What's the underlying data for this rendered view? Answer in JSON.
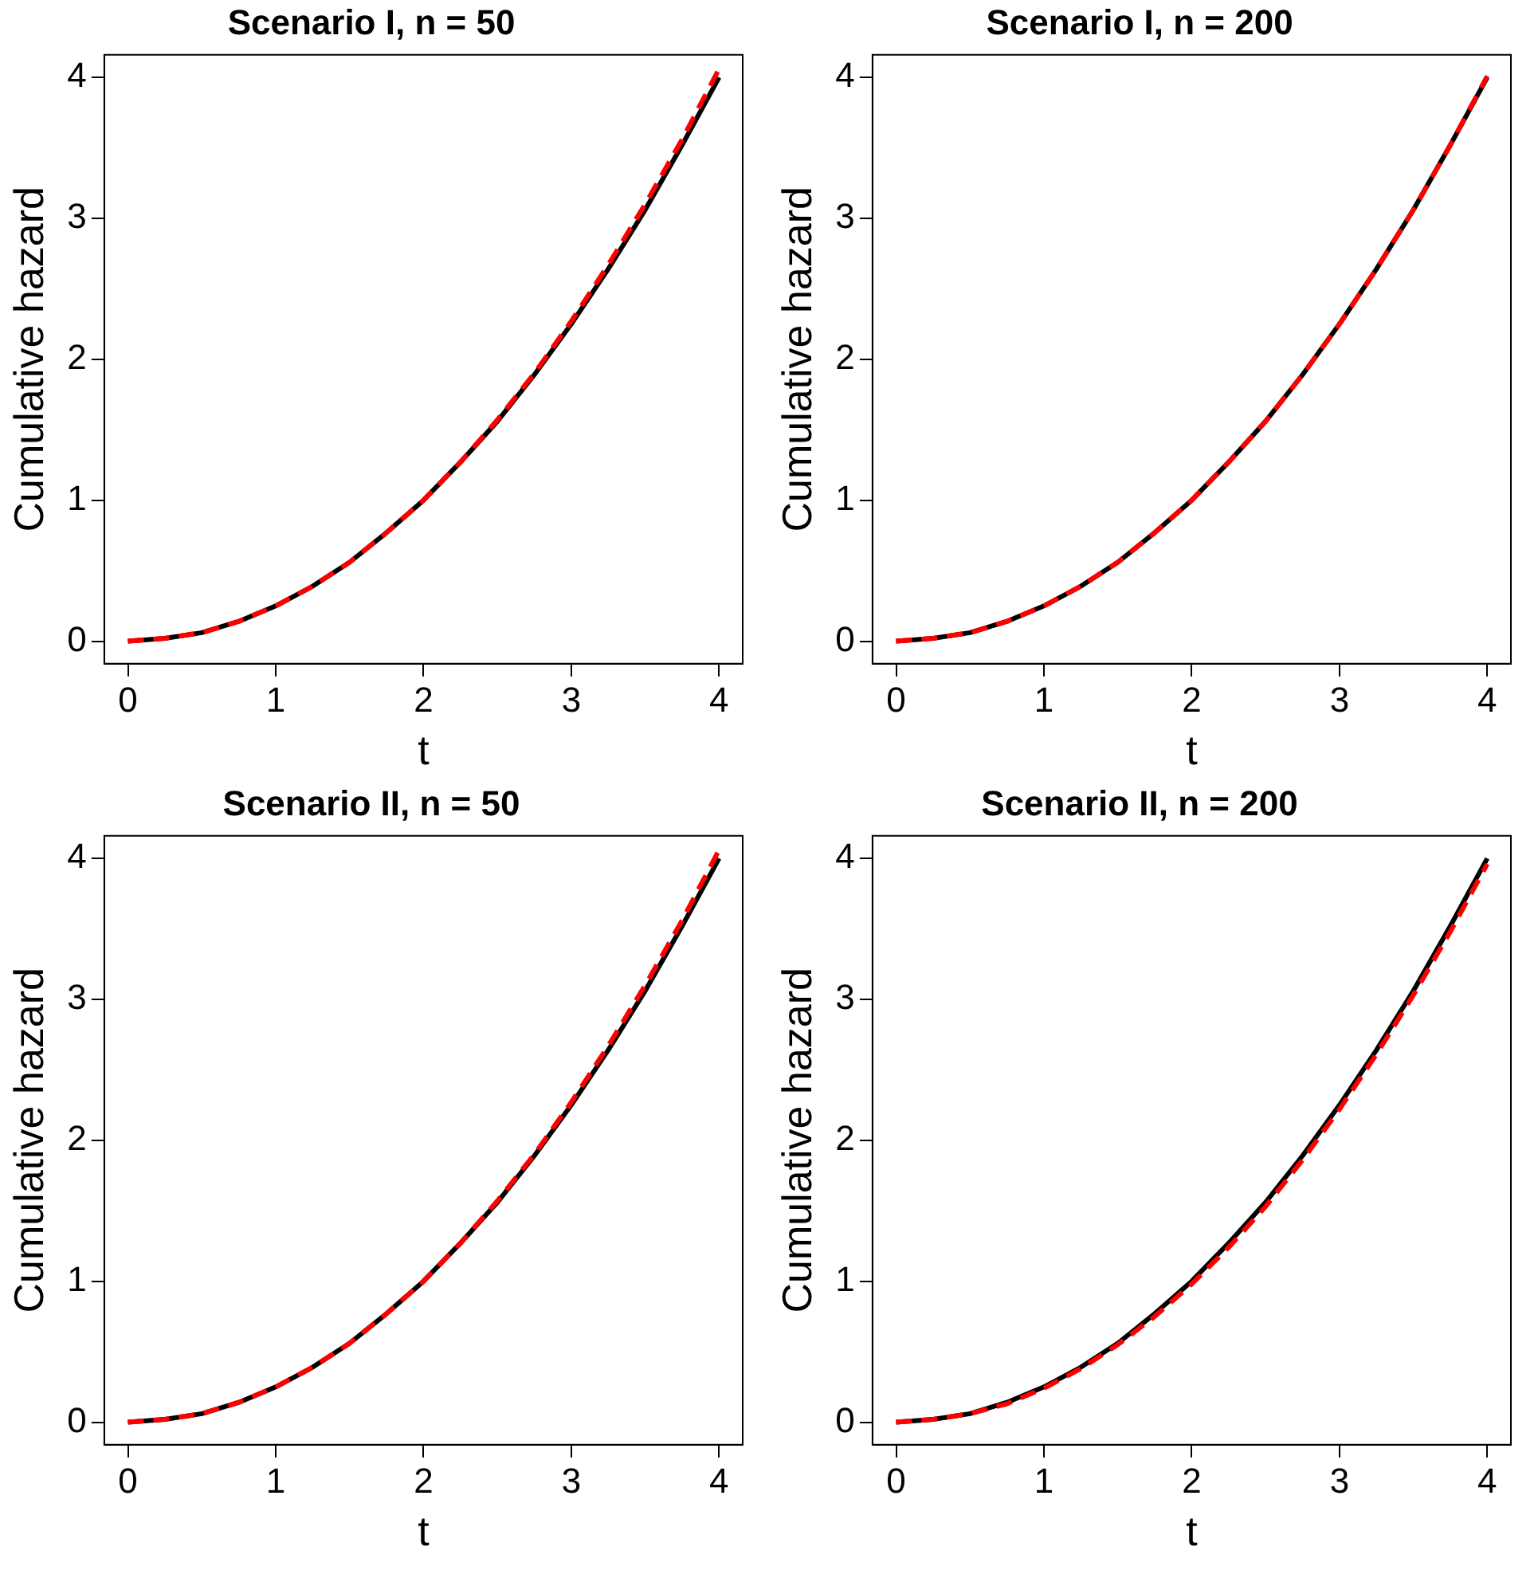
{
  "chart_data": [
    {
      "type": "line",
      "title": "Scenario I, n = 50",
      "xlabel": "t",
      "ylabel": "Cumulative hazard",
      "xlim": [
        -0.16,
        4.16
      ],
      "ylim": [
        -0.16,
        4.16
      ],
      "xticks": [
        0,
        1,
        2,
        3,
        4
      ],
      "yticks": [
        0,
        1,
        2,
        3,
        4
      ],
      "grid": false,
      "legend": false,
      "series": [
        {
          "color": "#000000",
          "line_style": "solid",
          "x": [
            0,
            0.25,
            0.5,
            0.75,
            1,
            1.25,
            1.5,
            1.75,
            2,
            2.25,
            2.5,
            2.75,
            3,
            3.25,
            3.5,
            3.75,
            4
          ],
          "values": [
            0,
            0.02,
            0.06,
            0.14,
            0.25,
            0.39,
            0.56,
            0.77,
            1,
            1.27,
            1.56,
            1.89,
            2.25,
            2.64,
            3.06,
            3.52,
            4
          ]
        },
        {
          "color": "#ff0000",
          "line_style": "dashed",
          "x": [
            0,
            0.25,
            0.5,
            0.75,
            1,
            1.25,
            1.5,
            1.75,
            2,
            2.25,
            2.5,
            2.75,
            3,
            3.25,
            3.5,
            3.75,
            4
          ],
          "values": [
            0,
            0.02,
            0.06,
            0.14,
            0.25,
            0.39,
            0.56,
            0.77,
            1,
            1.27,
            1.57,
            1.9,
            2.27,
            2.67,
            3.1,
            3.56,
            4.06
          ]
        }
      ]
    },
    {
      "type": "line",
      "title": "Scenario I, n = 200",
      "xlabel": "t",
      "ylabel": "Cumulative hazard",
      "xlim": [
        -0.16,
        4.16
      ],
      "ylim": [
        -0.16,
        4.16
      ],
      "xticks": [
        0,
        1,
        2,
        3,
        4
      ],
      "yticks": [
        0,
        1,
        2,
        3,
        4
      ],
      "grid": false,
      "legend": false,
      "series": [
        {
          "color": "#000000",
          "line_style": "solid",
          "x": [
            0,
            0.25,
            0.5,
            0.75,
            1,
            1.25,
            1.5,
            1.75,
            2,
            2.25,
            2.5,
            2.75,
            3,
            3.25,
            3.5,
            3.75,
            4
          ],
          "values": [
            0,
            0.02,
            0.06,
            0.14,
            0.25,
            0.39,
            0.56,
            0.77,
            1,
            1.27,
            1.56,
            1.89,
            2.25,
            2.64,
            3.06,
            3.52,
            4
          ]
        },
        {
          "color": "#ff0000",
          "line_style": "dashed",
          "x": [
            0,
            0.25,
            0.5,
            0.75,
            1,
            1.25,
            1.5,
            1.75,
            2,
            2.25,
            2.5,
            2.75,
            3,
            3.25,
            3.5,
            3.75,
            4
          ],
          "values": [
            0,
            0.02,
            0.06,
            0.14,
            0.25,
            0.39,
            0.56,
            0.77,
            1,
            1.27,
            1.56,
            1.89,
            2.25,
            2.64,
            3.06,
            3.52,
            4.01
          ]
        }
      ]
    },
    {
      "type": "line",
      "title": "Scenario II, n = 50",
      "xlabel": "t",
      "ylabel": "Cumulative hazard",
      "xlim": [
        -0.16,
        4.16
      ],
      "ylim": [
        -0.16,
        4.16
      ],
      "xticks": [
        0,
        1,
        2,
        3,
        4
      ],
      "yticks": [
        0,
        1,
        2,
        3,
        4
      ],
      "grid": false,
      "legend": false,
      "series": [
        {
          "color": "#000000",
          "line_style": "solid",
          "x": [
            0,
            0.25,
            0.5,
            0.75,
            1,
            1.25,
            1.5,
            1.75,
            2,
            2.25,
            2.5,
            2.75,
            3,
            3.25,
            3.5,
            3.75,
            4
          ],
          "values": [
            0,
            0.02,
            0.06,
            0.14,
            0.25,
            0.39,
            0.56,
            0.77,
            1,
            1.27,
            1.56,
            1.89,
            2.25,
            2.64,
            3.06,
            3.52,
            4
          ]
        },
        {
          "color": "#ff0000",
          "line_style": "dashed",
          "x": [
            0,
            0.25,
            0.5,
            0.75,
            1,
            1.25,
            1.5,
            1.75,
            2,
            2.25,
            2.5,
            2.75,
            3,
            3.25,
            3.5,
            3.75,
            4
          ],
          "values": [
            0,
            0.02,
            0.06,
            0.14,
            0.25,
            0.39,
            0.56,
            0.77,
            1,
            1.27,
            1.57,
            1.9,
            2.27,
            2.67,
            3.1,
            3.56,
            4.06
          ]
        }
      ]
    },
    {
      "type": "line",
      "title": "Scenario II, n = 200",
      "xlabel": "t",
      "ylabel": "Cumulative hazard",
      "xlim": [
        -0.16,
        4.16
      ],
      "ylim": [
        -0.16,
        4.16
      ],
      "xticks": [
        0,
        1,
        2,
        3,
        4
      ],
      "yticks": [
        0,
        1,
        2,
        3,
        4
      ],
      "grid": false,
      "legend": false,
      "series": [
        {
          "color": "#000000",
          "line_style": "solid",
          "x": [
            0,
            0.25,
            0.5,
            0.75,
            1,
            1.25,
            1.5,
            1.75,
            2,
            2.25,
            2.5,
            2.75,
            3,
            3.25,
            3.5,
            3.75,
            4
          ],
          "values": [
            0,
            0.02,
            0.06,
            0.14,
            0.25,
            0.39,
            0.56,
            0.77,
            1,
            1.27,
            1.56,
            1.89,
            2.25,
            2.64,
            3.06,
            3.52,
            4
          ]
        },
        {
          "color": "#ff0000",
          "line_style": "dashed",
          "x": [
            0,
            0.25,
            0.5,
            0.75,
            1,
            1.25,
            1.5,
            1.75,
            2,
            2.25,
            2.5,
            2.75,
            3,
            3.25,
            3.5,
            3.75,
            4
          ],
          "values": [
            0,
            0.02,
            0.06,
            0.13,
            0.24,
            0.38,
            0.55,
            0.75,
            0.98,
            1.24,
            1.53,
            1.86,
            2.22,
            2.61,
            3.03,
            3.48,
            3.96
          ]
        }
      ]
    }
  ]
}
